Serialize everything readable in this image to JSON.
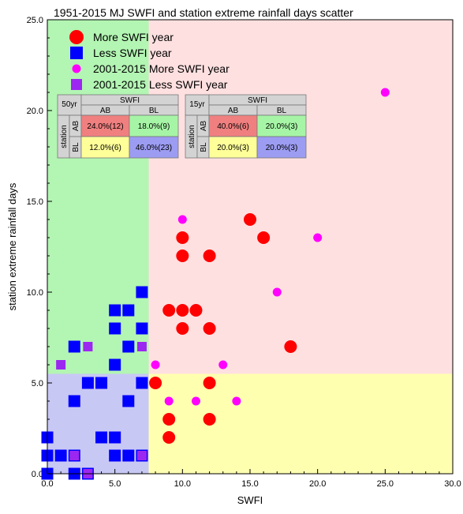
{
  "colors": {
    "quad_more_high": "#ffe0e0",
    "quad_less_high": "#b3f5b3",
    "quad_less_low": "#c8c8f5",
    "quad_more_low": "#ffffb0",
    "more": "#ff0000",
    "less": "#0000ff",
    "recent_more": "#ff00ff",
    "recent_less": "#9c27f0",
    "ct_header": "#d3d3d3",
    "ct_red": "#f08080",
    "ct_green": "#a6f5a6",
    "ct_yellow": "#ffff99",
    "ct_blue": "#9c9cf2"
  },
  "chart_data": {
    "type": "scatter",
    "title": "1951-2015 MJ SWFI and station extreme rainfall days scatter",
    "xlabel": "SWFI",
    "ylabel": "station extreme rainfall days",
    "xlim": [
      0,
      30
    ],
    "ylim": [
      0,
      25
    ],
    "xticks": [
      "0.0",
      "5.0",
      "10.0",
      "15.0",
      "20.0",
      "25.0",
      "30.0"
    ],
    "yticks": [
      "0.0",
      "5.0",
      "10.0",
      "15.0",
      "20.0",
      "25.0"
    ],
    "quadrant_split": {
      "x": 7.5,
      "y": 5.5
    },
    "legend_position": "top-left",
    "series": [
      {
        "name": "More SWFI year",
        "marker": "circle",
        "color": "#ff0000",
        "points": [
          [
            15,
            14
          ],
          [
            10,
            13
          ],
          [
            16,
            13
          ],
          [
            10,
            12
          ],
          [
            12,
            12
          ],
          [
            9,
            9
          ],
          [
            10,
            9
          ],
          [
            11,
            9
          ],
          [
            10,
            8
          ],
          [
            12,
            8
          ],
          [
            18,
            7
          ],
          [
            8,
            5
          ],
          [
            12,
            5
          ],
          [
            9,
            3
          ],
          [
            12,
            3
          ],
          [
            9,
            2
          ]
        ]
      },
      {
        "name": "Less SWFI year",
        "marker": "square",
        "color": "#0000ff",
        "points": [
          [
            7,
            10
          ],
          [
            5,
            9
          ],
          [
            6,
            9
          ],
          [
            5,
            8
          ],
          [
            7,
            8
          ],
          [
            2,
            7
          ],
          [
            6,
            7
          ],
          [
            5,
            6
          ],
          [
            3,
            5
          ],
          [
            4,
            5
          ],
          [
            7,
            5
          ],
          [
            2,
            4
          ],
          [
            6,
            4
          ],
          [
            4,
            2
          ],
          [
            5,
            2
          ],
          [
            0,
            2
          ],
          [
            0,
            1
          ],
          [
            1,
            1
          ],
          [
            2,
            1
          ],
          [
            5,
            1
          ],
          [
            6,
            1
          ],
          [
            7,
            1
          ],
          [
            0,
            0
          ],
          [
            2,
            0
          ],
          [
            3,
            0
          ]
        ]
      },
      {
        "name": "2001-2015 More SWFI year",
        "marker": "circle",
        "color": "#ff00ff",
        "points": [
          [
            25,
            21
          ],
          [
            10,
            14
          ],
          [
            20,
            13
          ],
          [
            17,
            10
          ],
          [
            8,
            6
          ],
          [
            13,
            6
          ],
          [
            9,
            4
          ],
          [
            11,
            4
          ],
          [
            14,
            4
          ]
        ]
      },
      {
        "name": "2001-2015 Less SWFI year",
        "marker": "square",
        "color": "#9c27f0",
        "points": [
          [
            3,
            7
          ],
          [
            7,
            7
          ],
          [
            1,
            6
          ],
          [
            2,
            1
          ],
          [
            7,
            1
          ],
          [
            3,
            0
          ]
        ]
      }
    ],
    "contingency_tables": [
      {
        "period": "50yr",
        "col_header": "SWFI",
        "row_header": "station",
        "cols": [
          "AB",
          "BL"
        ],
        "rows": [
          "AB",
          "BL"
        ],
        "cells": [
          [
            "24.0%(12)",
            "18.0%(9)"
          ],
          [
            "12.0%(6)",
            "46.0%(23)"
          ]
        ]
      },
      {
        "period": "15yr",
        "col_header": "SWFI",
        "row_header": "station",
        "cols": [
          "AB",
          "BL"
        ],
        "rows": [
          "AB",
          "BL"
        ],
        "cells": [
          [
            "40.0%(6)",
            "20.0%(3)"
          ],
          [
            "20.0%(3)",
            "20.0%(3)"
          ]
        ]
      }
    ]
  }
}
